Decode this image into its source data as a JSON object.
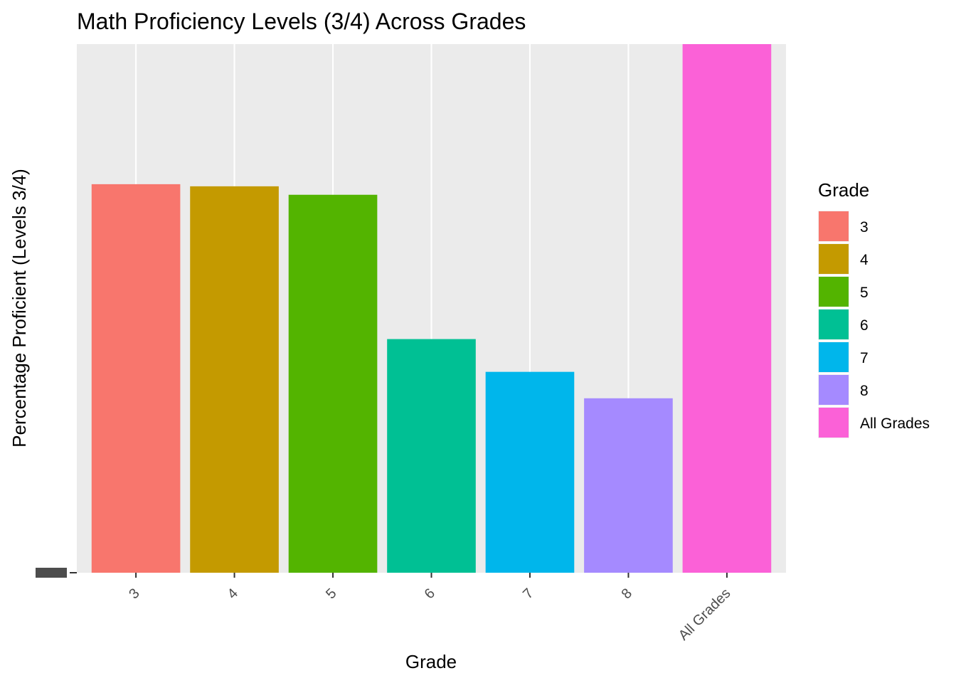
{
  "chart_data": {
    "type": "bar",
    "title": "Math Proficiency Levels (3/4) Across Grades",
    "xlabel": "Grade",
    "ylabel": "Percentage Proficient (Levels 3/4)",
    "categories": [
      "3",
      "4",
      "5",
      "6",
      "7",
      "8",
      "All Grades"
    ],
    "values": [
      73.5,
      73.1,
      71.5,
      44.2,
      38.0,
      33.0,
      100.0
    ],
    "colors": [
      "#F8766D",
      "#C49A00",
      "#53B400",
      "#00C094",
      "#00B6EB",
      "#A58AFF",
      "#FB61D7"
    ],
    "ylim": [
      0,
      100
    ],
    "grid": true,
    "legend": {
      "title": "Grade",
      "position": "right",
      "entries": [
        "3",
        "4",
        "5",
        "6",
        "7",
        "8",
        "All Grades"
      ]
    }
  }
}
